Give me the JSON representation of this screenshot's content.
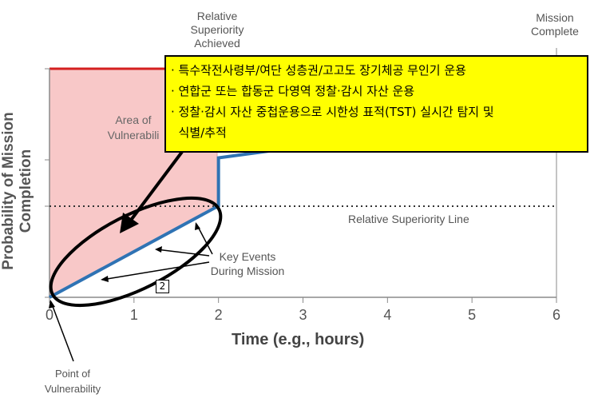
{
  "chart_data": {
    "type": "line",
    "xlabel": "Time (e.g., hours)",
    "ylabel": "Probability of Mission Completion",
    "xlim": [
      0,
      6
    ],
    "xticks": [
      "0",
      "1",
      "2",
      "3",
      "4",
      "5",
      "6"
    ],
    "series": [
      {
        "values_x": [
          0,
          2,
          2,
          3
        ],
        "values_y": [
          0.0,
          0.4,
          0.61,
          0.66
        ]
      }
    ],
    "relative_superiority_level": 0.4,
    "grid": false
  },
  "annotations": {
    "relative_superiority_achieved": "Relative\nSuperiority\nAchieved",
    "mission_complete": "Mission\nComplete",
    "area_of_vulnerability": "Area of\nVulnerabili",
    "relative_superiority_line": "Relative Superiority Line",
    "key_events": "Key Events\nDuring Mission",
    "point_of_vulnerability": "Point of\nVulnerability",
    "marker": "2"
  },
  "callout": {
    "lines": [
      "· 특수작전사령부/여단 성층권/고고도 장기체공 무인기 운용",
      "· 연합군 또는 합동군 다영역 정찰·감시 자산 운용",
      "· 정찰·감시 자산 중첩운용으로 시한성 표적(TST) 실시간 탐지 및",
      "  식별/추적"
    ]
  },
  "colors": {
    "vulnerability_fill": "#f8c8c8",
    "top_line": "#d42020",
    "series_line": "#2f73b4",
    "callout_bg": "#ffff00"
  }
}
